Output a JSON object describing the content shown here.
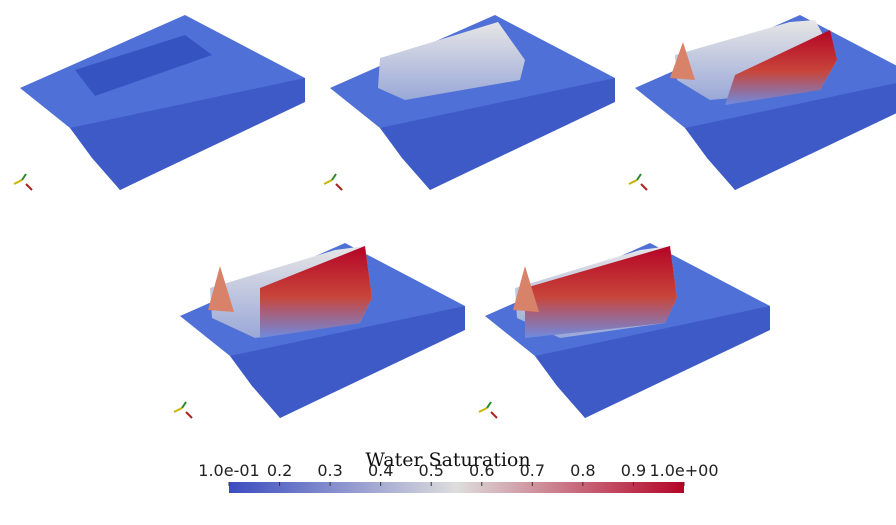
{
  "colorbar": {
    "title": "Water Saturation",
    "range": [
      0.1,
      1.0
    ],
    "ticks": [
      {
        "value": 0.1,
        "label": "1.0e-01"
      },
      0.2,
      0.3,
      0.4,
      0.5,
      0.6,
      0.7,
      0.8,
      0.9,
      {
        "value": 1.0,
        "label": "1.0e+00"
      }
    ]
  }
}
